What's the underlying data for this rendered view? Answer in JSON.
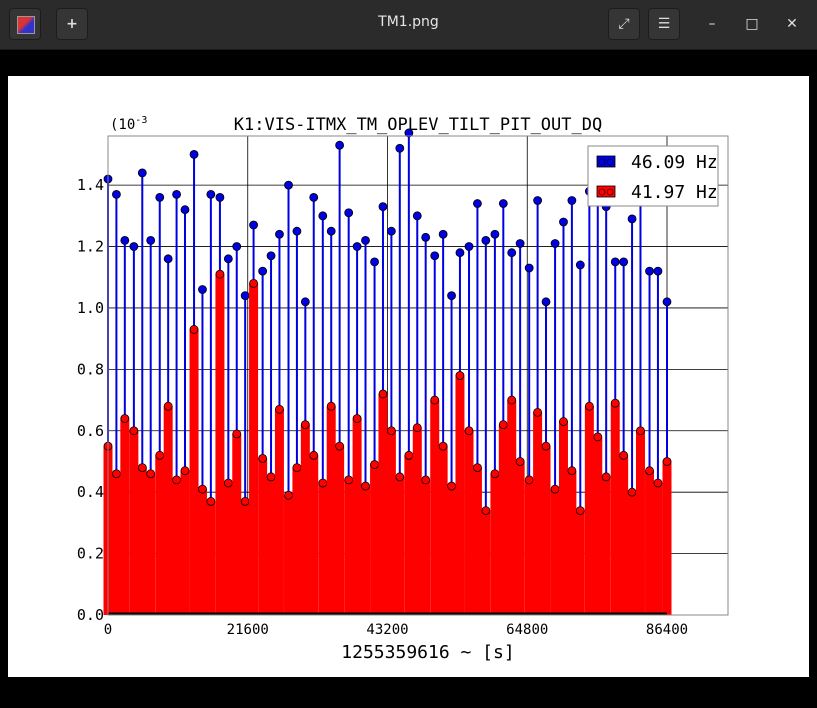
{
  "window": {
    "title": "TM1.png"
  },
  "toolbar": {
    "new_icon": "plus-icon",
    "fullscreen_icon": "expand-icon",
    "menu_icon": "hamburger-icon"
  },
  "controls": {
    "minimize": "–",
    "maximize": "□",
    "close": "✕"
  },
  "chart_data": {
    "type": "scatter",
    "title": "K1:VIS-ITMX_TM_OPLEV_TILT_PIT_OUT_DQ",
    "xlabel": "1255359616 ~ [s]",
    "ylabel": "",
    "yexponent": "(10",
    "yexponent_power": "-3",
    "xlim": [
      0,
      86400
    ],
    "ylim": [
      0,
      1.56
    ],
    "xticks": [
      "0",
      "21600",
      "43200",
      "64800",
      "86400"
    ],
    "yticks": [
      "0.0",
      "0.2",
      "0.4",
      "0.6",
      "0.8",
      "1.0",
      "1.2",
      "1.4"
    ],
    "grid": true,
    "legend_position": "top-right",
    "series": [
      {
        "name": "46.09 Hz",
        "color": "#0000e0",
        "points": [
          [
            0,
            1.42
          ],
          [
            1300,
            1.37
          ],
          [
            2600,
            1.22
          ],
          [
            4000,
            1.2
          ],
          [
            5300,
            1.44
          ],
          [
            6600,
            1.22
          ],
          [
            8000,
            1.36
          ],
          [
            9300,
            1.16
          ],
          [
            10600,
            1.37
          ],
          [
            11900,
            1.32
          ],
          [
            13300,
            1.5
          ],
          [
            14600,
            1.06
          ],
          [
            15900,
            1.37
          ],
          [
            17300,
            1.36
          ],
          [
            18600,
            1.16
          ],
          [
            19900,
            1.2
          ],
          [
            21200,
            1.04
          ],
          [
            22500,
            1.27
          ],
          [
            23900,
            1.12
          ],
          [
            25200,
            1.17
          ],
          [
            26500,
            1.24
          ],
          [
            27900,
            1.4
          ],
          [
            29200,
            1.25
          ],
          [
            30500,
            1.02
          ],
          [
            31800,
            1.36
          ],
          [
            33200,
            1.3
          ],
          [
            34500,
            1.25
          ],
          [
            35800,
            1.53
          ],
          [
            37200,
            1.31
          ],
          [
            38500,
            1.2
          ],
          [
            39800,
            1.22
          ],
          [
            41200,
            1.15
          ],
          [
            42500,
            1.33
          ],
          [
            43800,
            1.25
          ],
          [
            45100,
            1.52
          ],
          [
            46500,
            1.57
          ],
          [
            47800,
            1.3
          ],
          [
            49100,
            1.23
          ],
          [
            50500,
            1.17
          ],
          [
            51800,
            1.24
          ],
          [
            53100,
            1.04
          ],
          [
            54400,
            1.18
          ],
          [
            55800,
            1.2
          ],
          [
            57100,
            1.34
          ],
          [
            58400,
            1.22
          ],
          [
            59800,
            1.24
          ],
          [
            61100,
            1.34
          ],
          [
            62400,
            1.18
          ],
          [
            63700,
            1.21
          ],
          [
            65100,
            1.13
          ],
          [
            66400,
            1.35
          ],
          [
            67700,
            1.02
          ],
          [
            69100,
            1.21
          ],
          [
            70400,
            1.28
          ],
          [
            71700,
            1.35
          ],
          [
            73000,
            1.14
          ],
          [
            74400,
            1.38
          ],
          [
            75700,
            1.35
          ],
          [
            77000,
            1.33
          ],
          [
            78400,
            1.15
          ],
          [
            79700,
            1.15
          ],
          [
            81000,
            1.29
          ],
          [
            82300,
            1.43
          ],
          [
            83700,
            1.12
          ],
          [
            85000,
            1.12
          ],
          [
            86400,
            1.02
          ]
        ]
      },
      {
        "name": "41.97 Hz",
        "color": "#ff0000",
        "points": [
          [
            0,
            0.55
          ],
          [
            1300,
            0.46
          ],
          [
            2600,
            0.64
          ],
          [
            4000,
            0.6
          ],
          [
            5300,
            0.48
          ],
          [
            6600,
            0.46
          ],
          [
            8000,
            0.52
          ],
          [
            9300,
            0.68
          ],
          [
            10600,
            0.44
          ],
          [
            11900,
            0.47
          ],
          [
            13300,
            0.93
          ],
          [
            14600,
            0.41
          ],
          [
            15900,
            0.37
          ],
          [
            17300,
            1.11
          ],
          [
            18600,
            0.43
          ],
          [
            19900,
            0.59
          ],
          [
            21200,
            0.37
          ],
          [
            22500,
            1.08
          ],
          [
            23900,
            0.51
          ],
          [
            25200,
            0.45
          ],
          [
            26500,
            0.67
          ],
          [
            27900,
            0.39
          ],
          [
            29200,
            0.48
          ],
          [
            30500,
            0.62
          ],
          [
            31800,
            0.52
          ],
          [
            33200,
            0.43
          ],
          [
            34500,
            0.68
          ],
          [
            35800,
            0.55
          ],
          [
            37200,
            0.44
          ],
          [
            38500,
            0.64
          ],
          [
            39800,
            0.42
          ],
          [
            41200,
            0.49
          ],
          [
            42500,
            0.72
          ],
          [
            43800,
            0.6
          ],
          [
            45100,
            0.45
          ],
          [
            46500,
            0.52
          ],
          [
            47800,
            0.61
          ],
          [
            49100,
            0.44
          ],
          [
            50500,
            0.7
          ],
          [
            51800,
            0.55
          ],
          [
            53100,
            0.42
          ],
          [
            54400,
            0.78
          ],
          [
            55800,
            0.6
          ],
          [
            57100,
            0.48
          ],
          [
            58400,
            0.34
          ],
          [
            59800,
            0.46
          ],
          [
            61100,
            0.62
          ],
          [
            62400,
            0.7
          ],
          [
            63700,
            0.5
          ],
          [
            65100,
            0.44
          ],
          [
            66400,
            0.66
          ],
          [
            67700,
            0.55
          ],
          [
            69100,
            0.41
          ],
          [
            70400,
            0.63
          ],
          [
            71700,
            0.47
          ],
          [
            73000,
            0.34
          ],
          [
            74400,
            0.68
          ],
          [
            75700,
            0.58
          ],
          [
            77000,
            0.45
          ],
          [
            78400,
            0.69
          ],
          [
            79700,
            0.52
          ],
          [
            81000,
            0.4
          ],
          [
            82300,
            0.6
          ],
          [
            83700,
            0.47
          ],
          [
            85000,
            0.43
          ],
          [
            86400,
            0.5
          ]
        ]
      }
    ]
  }
}
